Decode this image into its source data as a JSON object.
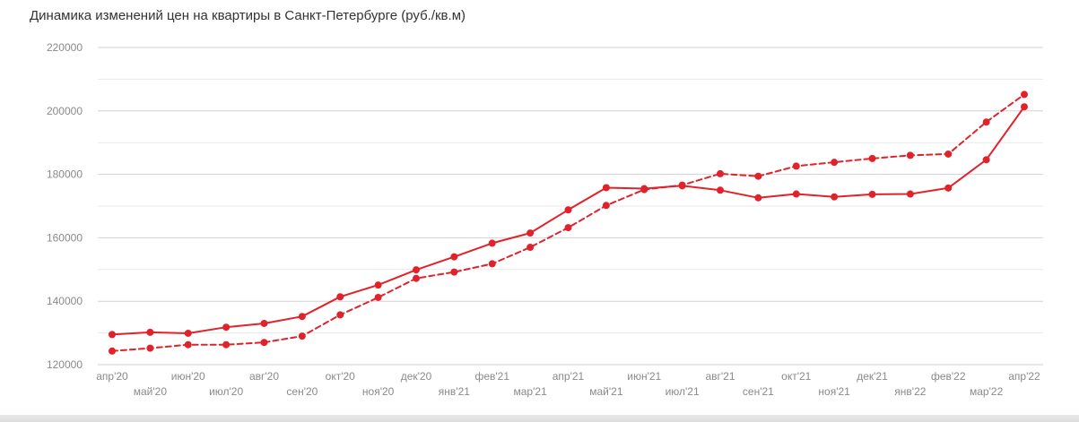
{
  "chart_data": {
    "type": "line",
    "title": "Динамика изменений цен на квартиры в Санкт-Петербурге (руб./кв.м)",
    "xlabel": "",
    "ylabel": "",
    "categories": [
      "апр'20",
      "май'20",
      "июн'20",
      "июл'20",
      "авг'20",
      "сен'20",
      "окт'20",
      "ноя'20",
      "дек'20",
      "янв'21",
      "фев'21",
      "мар'21",
      "апр'21",
      "май'21",
      "июн'21",
      "июл'21",
      "авг'21",
      "сен'21",
      "окт'21",
      "ноя'21",
      "дек'21",
      "янв'22",
      "фев'22",
      "мар'22",
      "апр'22"
    ],
    "ylim": [
      120000,
      220000
    ],
    "yticks": [
      120000,
      140000,
      160000,
      180000,
      200000,
      220000
    ],
    "ytick_labels": [
      "120000",
      "140000",
      "160000",
      "180000",
      "200000",
      "220000"
    ],
    "grid": true,
    "color": "#e1222b",
    "series": [
      {
        "style": "solid",
        "values": [
          129500,
          130200,
          129900,
          131800,
          133000,
          135200,
          141400,
          145100,
          149900,
          154000,
          158300,
          161500,
          168800,
          175800,
          175500,
          176400,
          175000,
          172600,
          173800,
          172900,
          173700,
          173800,
          175700,
          184600,
          201300
        ]
      },
      {
        "style": "dashed",
        "values": [
          124300,
          125200,
          126300,
          126300,
          127000,
          129000,
          135700,
          141200,
          147200,
          149200,
          151800,
          157000,
          163200,
          170200,
          175200,
          176600,
          180200,
          179400,
          182600,
          183800,
          185000,
          186000,
          186400,
          196500,
          205200
        ]
      }
    ]
  }
}
